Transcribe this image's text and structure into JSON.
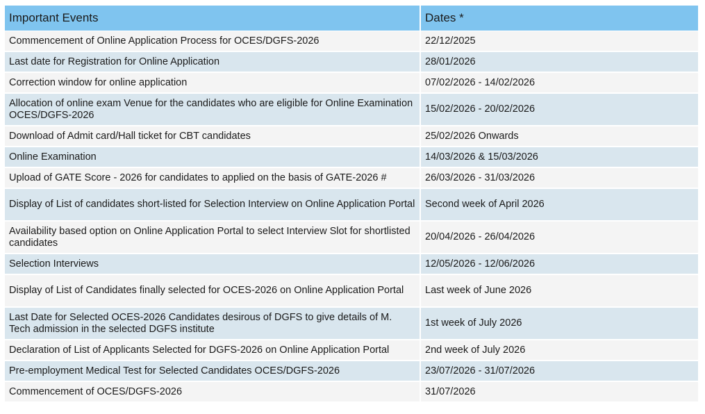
{
  "table": {
    "headers": {
      "event": "Important Events",
      "dates": "Dates *"
    },
    "rows": [
      {
        "event": "Commencement of Online Application Process for OCES/DGFS-2026",
        "date": "22/12/2025"
      },
      {
        "event": "Last date for Registration for Online Application",
        "date": "28/01/2026"
      },
      {
        "event": "Correction window for online application",
        "date": "07/02/2026 - 14/02/2026"
      },
      {
        "event": "Allocation of online exam Venue for the candidates who are eligible for Online Examination OCES/DGFS-2026",
        "date": "15/02/2026 - 20/02/2026"
      },
      {
        "event": "Download of Admit card/Hall ticket for CBT candidates",
        "date": "25/02/2026 Onwards"
      },
      {
        "event": "Online Examination",
        "date": "14/03/2026 & 15/03/2026"
      },
      {
        "event": "Upload of GATE Score - 2026 for candidates to applied on the basis of GATE-2026 #",
        "date": "26/03/2026 - 31/03/2026"
      },
      {
        "event": "Display of List of candidates short-listed for Selection Interview on Online Application Portal",
        "date": "Second week of April 2026"
      },
      {
        "event": "Availability based option on Online Application Portal to select Interview Slot for shortlisted candidates",
        "date": "20/04/2026 - 26/04/2026"
      },
      {
        "event": "Selection Interviews",
        "date": "12/05/2026 - 12/06/2026"
      },
      {
        "event": "Display of List of Candidates finally selected for OCES-2026 on Online Application Portal",
        "date": "Last week of June 2026"
      },
      {
        "event": "Last Date for Selected OCES-2026 Candidates desirous of DGFS to give details of M. Tech admission in the selected DGFS institute",
        "date": "1st week of July 2026"
      },
      {
        "event": "Declaration of List of Applicants Selected for DGFS-2026 on Online Application Portal",
        "date": "2nd week of July 2026"
      },
      {
        "event": "Pre-employment Medical Test for Selected Candidates OCES/DGFS-2026",
        "date": "23/07/2026 - 31/07/2026"
      },
      {
        "event": "Commencement of OCES/DGFS-2026",
        "date": "31/07/2026"
      }
    ]
  },
  "colors": {
    "header_bg": "#7fc4ef",
    "row_light": "#f4f4f4",
    "row_dark": "#d9e6ee"
  }
}
